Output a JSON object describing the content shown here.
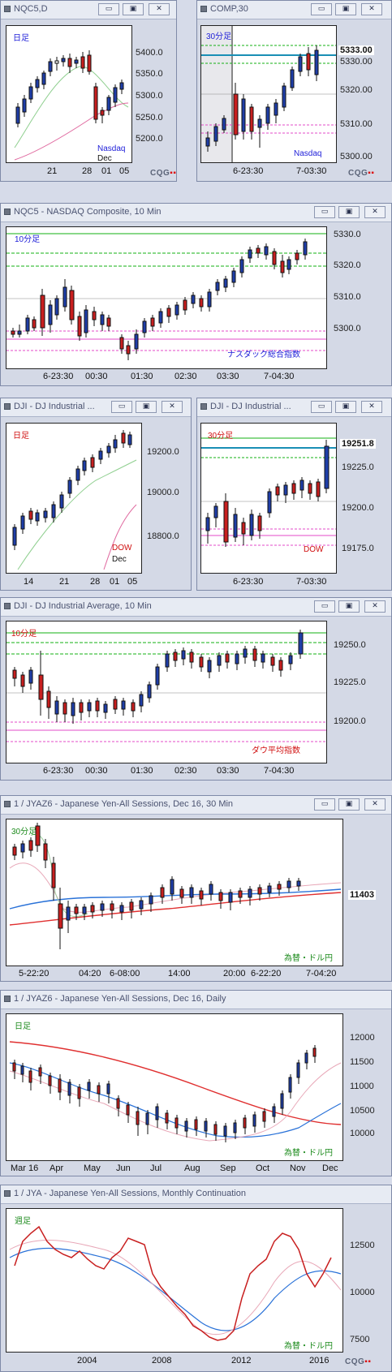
{
  "colors": {
    "blue_label": "#1d1dd8",
    "red_label": "#d01010",
    "green_label": "#1b8a1b",
    "teal": "#1a8fb5",
    "green_line": "#13b013",
    "pink_line": "#e34bc8",
    "magenta_line": "#d0209a"
  },
  "windows": [
    {
      "title": "NQC5,D",
      "timeframe": "日足",
      "market_label": "Nasdaq",
      "extra_label": "Dec",
      "y_ticks": [
        "5400.0",
        "5350.0",
        "5300.0",
        "5250.0",
        "5200.0"
      ],
      "x_labels": [
        "21",
        "28",
        "01",
        "05"
      ]
    },
    {
      "title": "COMP,30",
      "timeframe": "30分足",
      "market_label": "Nasdaq",
      "price_tag": "5333.00",
      "y_ticks": [
        "5330.00",
        "5320.00",
        "5310.00",
        "5300.00"
      ],
      "x_labels": [
        "6-23:30",
        "7-03:30"
      ]
    },
    {
      "title": "NQC5 - NASDAQ Composite, 10 Min",
      "timeframe": "10分足",
      "market_label": "ナスダック総合指数",
      "y_ticks": [
        "5330.0",
        "5320.0",
        "5310.0",
        "5300.0"
      ],
      "x_labels": [
        "6-23:30",
        "00:30",
        "01:30",
        "02:30",
        "03:30",
        "7-04:30"
      ]
    },
    {
      "title": "DJI - DJ Industrial ...",
      "timeframe": "日足",
      "market_label": "DOW",
      "extra_label": "Dec",
      "y_ticks": [
        "19200.0",
        "19000.0",
        "18800.0"
      ],
      "x_labels": [
        "14",
        "21",
        "28",
        "01",
        "05"
      ]
    },
    {
      "title": "DJI - DJ Industrial ...",
      "timeframe": "30分足",
      "market_label": "DOW",
      "price_tag": "19251.8",
      "y_ticks": [
        "19225.0",
        "19200.0",
        "19175.0"
      ],
      "x_labels": [
        "6-23:30",
        "7-03:30"
      ]
    },
    {
      "title": "DJI - DJ Industrial Average, 10 Min",
      "timeframe": "10分足",
      "market_label": "ダウ平均指数",
      "y_ticks": [
        "19250.0",
        "19225.0",
        "19200.0"
      ],
      "x_labels": [
        "6-23:30",
        "00:30",
        "01:30",
        "02:30",
        "03:30",
        "7-04:30"
      ]
    },
    {
      "title": "1 / JYAZ6 - Japanese Yen-All Sessions, Dec 16, 30 Min",
      "timeframe": "30分足",
      "market_label": "為替・ドル円",
      "price_tag": "11403",
      "y_ticks": [],
      "x_labels": [
        "5-22:20",
        "04:20",
        "6-08:00",
        "14:00",
        "20:00",
        "6-22:20",
        "7-04:20"
      ]
    },
    {
      "title": "1 / JYAZ6 - Japanese Yen-All Sessions, Dec 16, Daily",
      "timeframe": "日足",
      "market_label": "為替・ドル円",
      "y_ticks": [
        "12000",
        "11500",
        "11000",
        "10500",
        "10000"
      ],
      "x_labels": [
        "Mar 16",
        "Apr",
        "May",
        "Jun",
        "Jul",
        "Aug",
        "Sep",
        "Oct",
        "Nov",
        "Dec"
      ]
    },
    {
      "title": "1 / JYA - Japanese Yen-All Sessions, Monthly Continuation",
      "timeframe": "週足",
      "market_label": "為替・ドル円",
      "y_ticks": [
        "12500",
        "10000",
        "7500"
      ],
      "x_labels": [
        "2004",
        "2008",
        "2012",
        "2016"
      ]
    }
  ],
  "window_buttons": {
    "minimize": "▭",
    "maximize": "▣",
    "close": "✕"
  },
  "logo": {
    "text": "CQG",
    "mark": "▪▪"
  }
}
